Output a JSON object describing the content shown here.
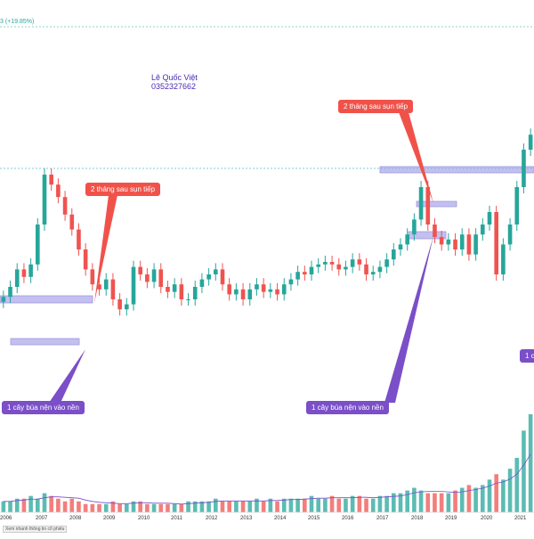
{
  "header": {
    "change_text": "3 (+19.85%)"
  },
  "author": {
    "name": "Lê Quốc Việt",
    "phone": "0352327662"
  },
  "annotations": {
    "red_1": "2 tháng sau sụn tiếp",
    "red_2": "2 tháng sau sụn tiếp",
    "purple_1": "1 cây búa nện vào nền",
    "purple_2": "1 cây búa nện vào nền",
    "purple_3": "1 c"
  },
  "footer": {
    "label": "Xem nhanh thông tin cổ phiếu"
  },
  "colors": {
    "up": "#26a69a",
    "down": "#ef5350",
    "zone": "#b9b4ee",
    "red_note": "#f0524a",
    "purple_note": "#7a4fc8",
    "hline": "#5fb8c9"
  },
  "chart_data": {
    "type": "candlestick",
    "x_tick_labels": [
      "2006",
      "2007",
      "2008",
      "2009",
      "2010",
      "2011",
      "2012",
      "2013",
      "2014",
      "2015",
      "2016",
      "2017",
      "2018",
      "2019",
      "2020",
      "2021"
    ],
    "value_scale": "relative price (0–100); no price axis visible in screenshot",
    "ylim": [
      0,
      100
    ],
    "series": [
      {
        "values": [
          31,
          35,
          42,
          39,
          44,
          60,
          80,
          76,
          71,
          64,
          58,
          50,
          42,
          36,
          34,
          38,
          30,
          26,
          28,
          43,
          40,
          37,
          42,
          35,
          33,
          36,
          30,
          30,
          35,
          38,
          40,
          42,
          36,
          32,
          34,
          30,
          34,
          36,
          33,
          34,
          32,
          36,
          38,
          41,
          40,
          43,
          44,
          45,
          44,
          42,
          43,
          46,
          44,
          40,
          41,
          43,
          46,
          50,
          52,
          56,
          62,
          75,
          60,
          55,
          52,
          54,
          50,
          56,
          48,
          56,
          60,
          65,
          40,
          52,
          60,
          75,
          90,
          96
        ]
      }
    ],
    "volume": [
      4,
      4,
      5,
      5,
      6,
      5,
      7,
      6,
      5,
      4,
      5,
      4,
      3,
      3,
      3,
      3,
      4,
      3,
      3,
      4,
      4,
      3,
      3,
      3,
      3,
      3,
      3,
      4,
      4,
      4,
      4,
      5,
      4,
      4,
      4,
      4,
      4,
      5,
      4,
      5,
      4,
      5,
      5,
      5,
      5,
      6,
      5,
      5,
      6,
      5,
      5,
      6,
      6,
      5,
      5,
      6,
      6,
      7,
      7,
      8,
      9,
      8,
      7,
      7,
      7,
      7,
      8,
      9,
      10,
      9,
      10,
      12,
      14,
      12,
      16,
      20,
      30,
      36
    ]
  }
}
